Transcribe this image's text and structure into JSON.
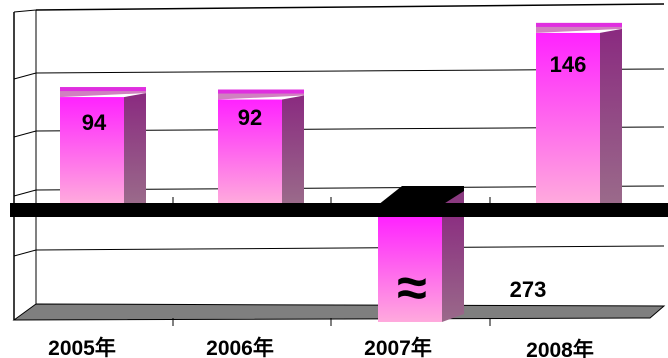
{
  "chart_data": {
    "type": "bar",
    "categories": [
      "2005年",
      "2006年",
      "2007年",
      "2008年"
    ],
    "values": [
      94,
      92,
      273,
      146
    ],
    "value_labels": [
      "94",
      "92",
      "273",
      "146"
    ],
    "broken_axis_symbol": "≈",
    "broken_bar": "2007年",
    "title": "",
    "xlabel": "",
    "ylabel": "",
    "grid": true,
    "legend": "none",
    "colors": {
      "bar_top": "#ff22ff",
      "bar_bottom": "#ffaadd",
      "bar_side": "#8b3f7a",
      "bar_cap": "#d080c0",
      "axis_band": "#000000",
      "floor": "#7f7f7f"
    }
  }
}
